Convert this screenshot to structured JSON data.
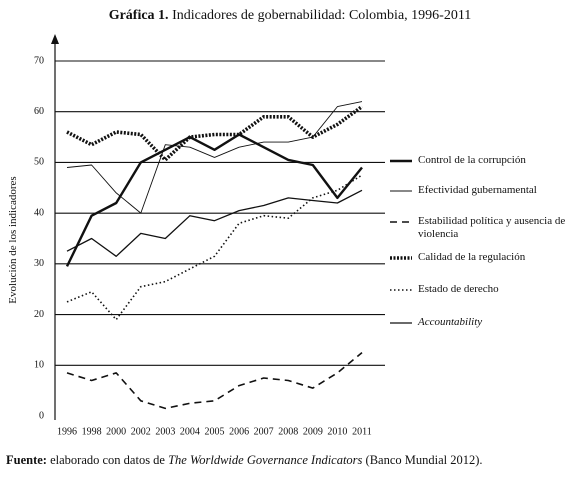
{
  "chart_data": {
    "type": "line",
    "title_label": "Gráfica 1.",
    "title": "Indicadores de gobernabilidad: Colombia, 1996-2011",
    "y_label": "Evolución de los indicadores",
    "categories": [
      "1996",
      "1998",
      "2000",
      "2002",
      "2003",
      "2004",
      "2005",
      "2006",
      "2007",
      "2008",
      "2009",
      "2010",
      "2011"
    ],
    "ylim": [
      0,
      70
    ],
    "yticks": [
      0,
      10,
      20,
      30,
      40,
      50,
      60,
      70
    ],
    "grid": true,
    "legend": "right",
    "series": [
      {
        "name": "Control de la corrupción",
        "color": "#111111",
        "width": 2.4,
        "dash": "none",
        "values": [
          29.5,
          39.5,
          42,
          50,
          52.5,
          55,
          52.5,
          55.5,
          53,
          50.5,
          49.5,
          43,
          49
        ]
      },
      {
        "name": "Efectividad gubernamental",
        "color": "#111111",
        "width": 0.9,
        "dash": "none",
        "values": [
          49,
          49.5,
          44,
          40,
          53.5,
          53,
          51,
          53,
          54,
          54,
          55,
          61,
          62
        ]
      },
      {
        "name": "Estabilidad política y ausencia de violencia",
        "color": "#111111",
        "width": 1.6,
        "dash": "7 5",
        "values": [
          8.5,
          7,
          8.5,
          3,
          1.5,
          2.5,
          3,
          6,
          7.5,
          7,
          5.5,
          8.5,
          12.5
        ]
      },
      {
        "name": "Calidad de la regulación",
        "color": "#111111",
        "width": 3.6,
        "dash": "2 1.5",
        "values": [
          56,
          53.5,
          56,
          55.5,
          50.5,
          55,
          55.5,
          55.5,
          59,
          59,
          55,
          57.5,
          61
        ]
      },
      {
        "name": "Estado de derecho",
        "color": "#111111",
        "width": 1.6,
        "dash": "1.5 2.5",
        "values": [
          22.5,
          24.5,
          19,
          25.5,
          26.5,
          29,
          31.5,
          38,
          39.5,
          39,
          43,
          44.5,
          47.5
        ]
      },
      {
        "name": "Accountability",
        "color": "#111111",
        "width": 1.3,
        "dash": "none",
        "font_style": "italic",
        "values": [
          32.5,
          35,
          31.5,
          36,
          35,
          39.5,
          38.5,
          40.5,
          41.5,
          43,
          42.5,
          42,
          44.5
        ]
      }
    ]
  },
  "source": {
    "label": "Fuente:",
    "text": "elaborado con datos de",
    "work": "The Worldwide Governance Indicators",
    "reference": "(Banco Mundial 2012)."
  }
}
